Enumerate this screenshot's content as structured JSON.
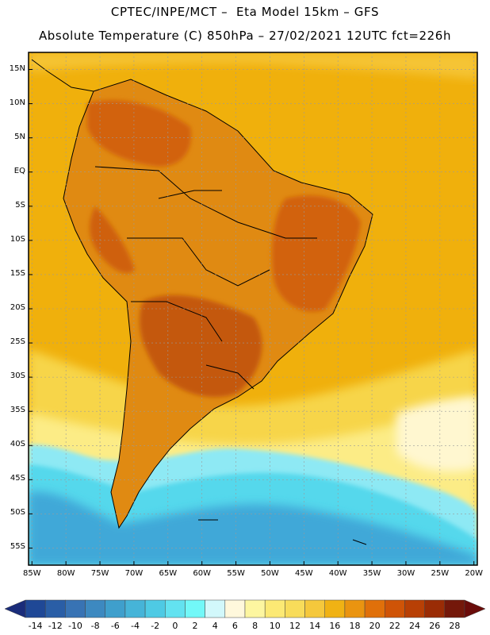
{
  "header": {
    "line1": "CPTEC/INPE/MCT –  Eta Model 15km – GFS",
    "line2": "Absolute Temperature (C) 850hPa – 27/02/2021 12UTC fct=226h"
  },
  "map": {
    "lat_labels": [
      "15N",
      "10N",
      "5N",
      "EQ",
      "5S",
      "10S",
      "15S",
      "20S",
      "25S",
      "30S",
      "35S",
      "40S",
      "45S",
      "50S",
      "55S"
    ],
    "lon_labels": [
      "85W",
      "80W",
      "75W",
      "70W",
      "65W",
      "60W",
      "55W",
      "50W",
      "45W",
      "40W",
      "35W",
      "30W",
      "25W",
      "20W"
    ],
    "lat_range": [
      17.5,
      -57.5
    ],
    "lon_range": [
      -85.5,
      -19.5
    ],
    "colors": {
      "ocean_warm": "#f0b00c",
      "land_hot": "#d8720c",
      "land_hotter": "#c4580a",
      "yellow": "#f7d548",
      "pale_yellow": "#fcec86",
      "cream": "#fff7d0",
      "cyan": "#54d8ec",
      "light_cyan": "#8ee9f4",
      "blue": "#3fa8d8"
    }
  },
  "colorbar": {
    "ticks": [
      "-14",
      "-12",
      "-10",
      "-8",
      "-6",
      "-4",
      "-2",
      "0",
      "2",
      "4",
      "6",
      "8",
      "10",
      "12",
      "14",
      "16",
      "18",
      "20",
      "22",
      "24",
      "26",
      "28"
    ],
    "colors": [
      "#1f4896",
      "#2a5ea6",
      "#3873b4",
      "#3d89c0",
      "#3f9fcc",
      "#46b4d8",
      "#4ecae4",
      "#63e2f0",
      "#72f8f8",
      "#d2f8fb",
      "#fff8dc",
      "#fdf6a0",
      "#fce974",
      "#f8dc5a",
      "#f5c83c",
      "#f0b214",
      "#ea9410",
      "#e0700a",
      "#cf5407",
      "#b84005",
      "#9a2c05",
      "#74180a"
    ],
    "under_color": "#1a2c7a",
    "over_color": "#6a0c0a"
  }
}
